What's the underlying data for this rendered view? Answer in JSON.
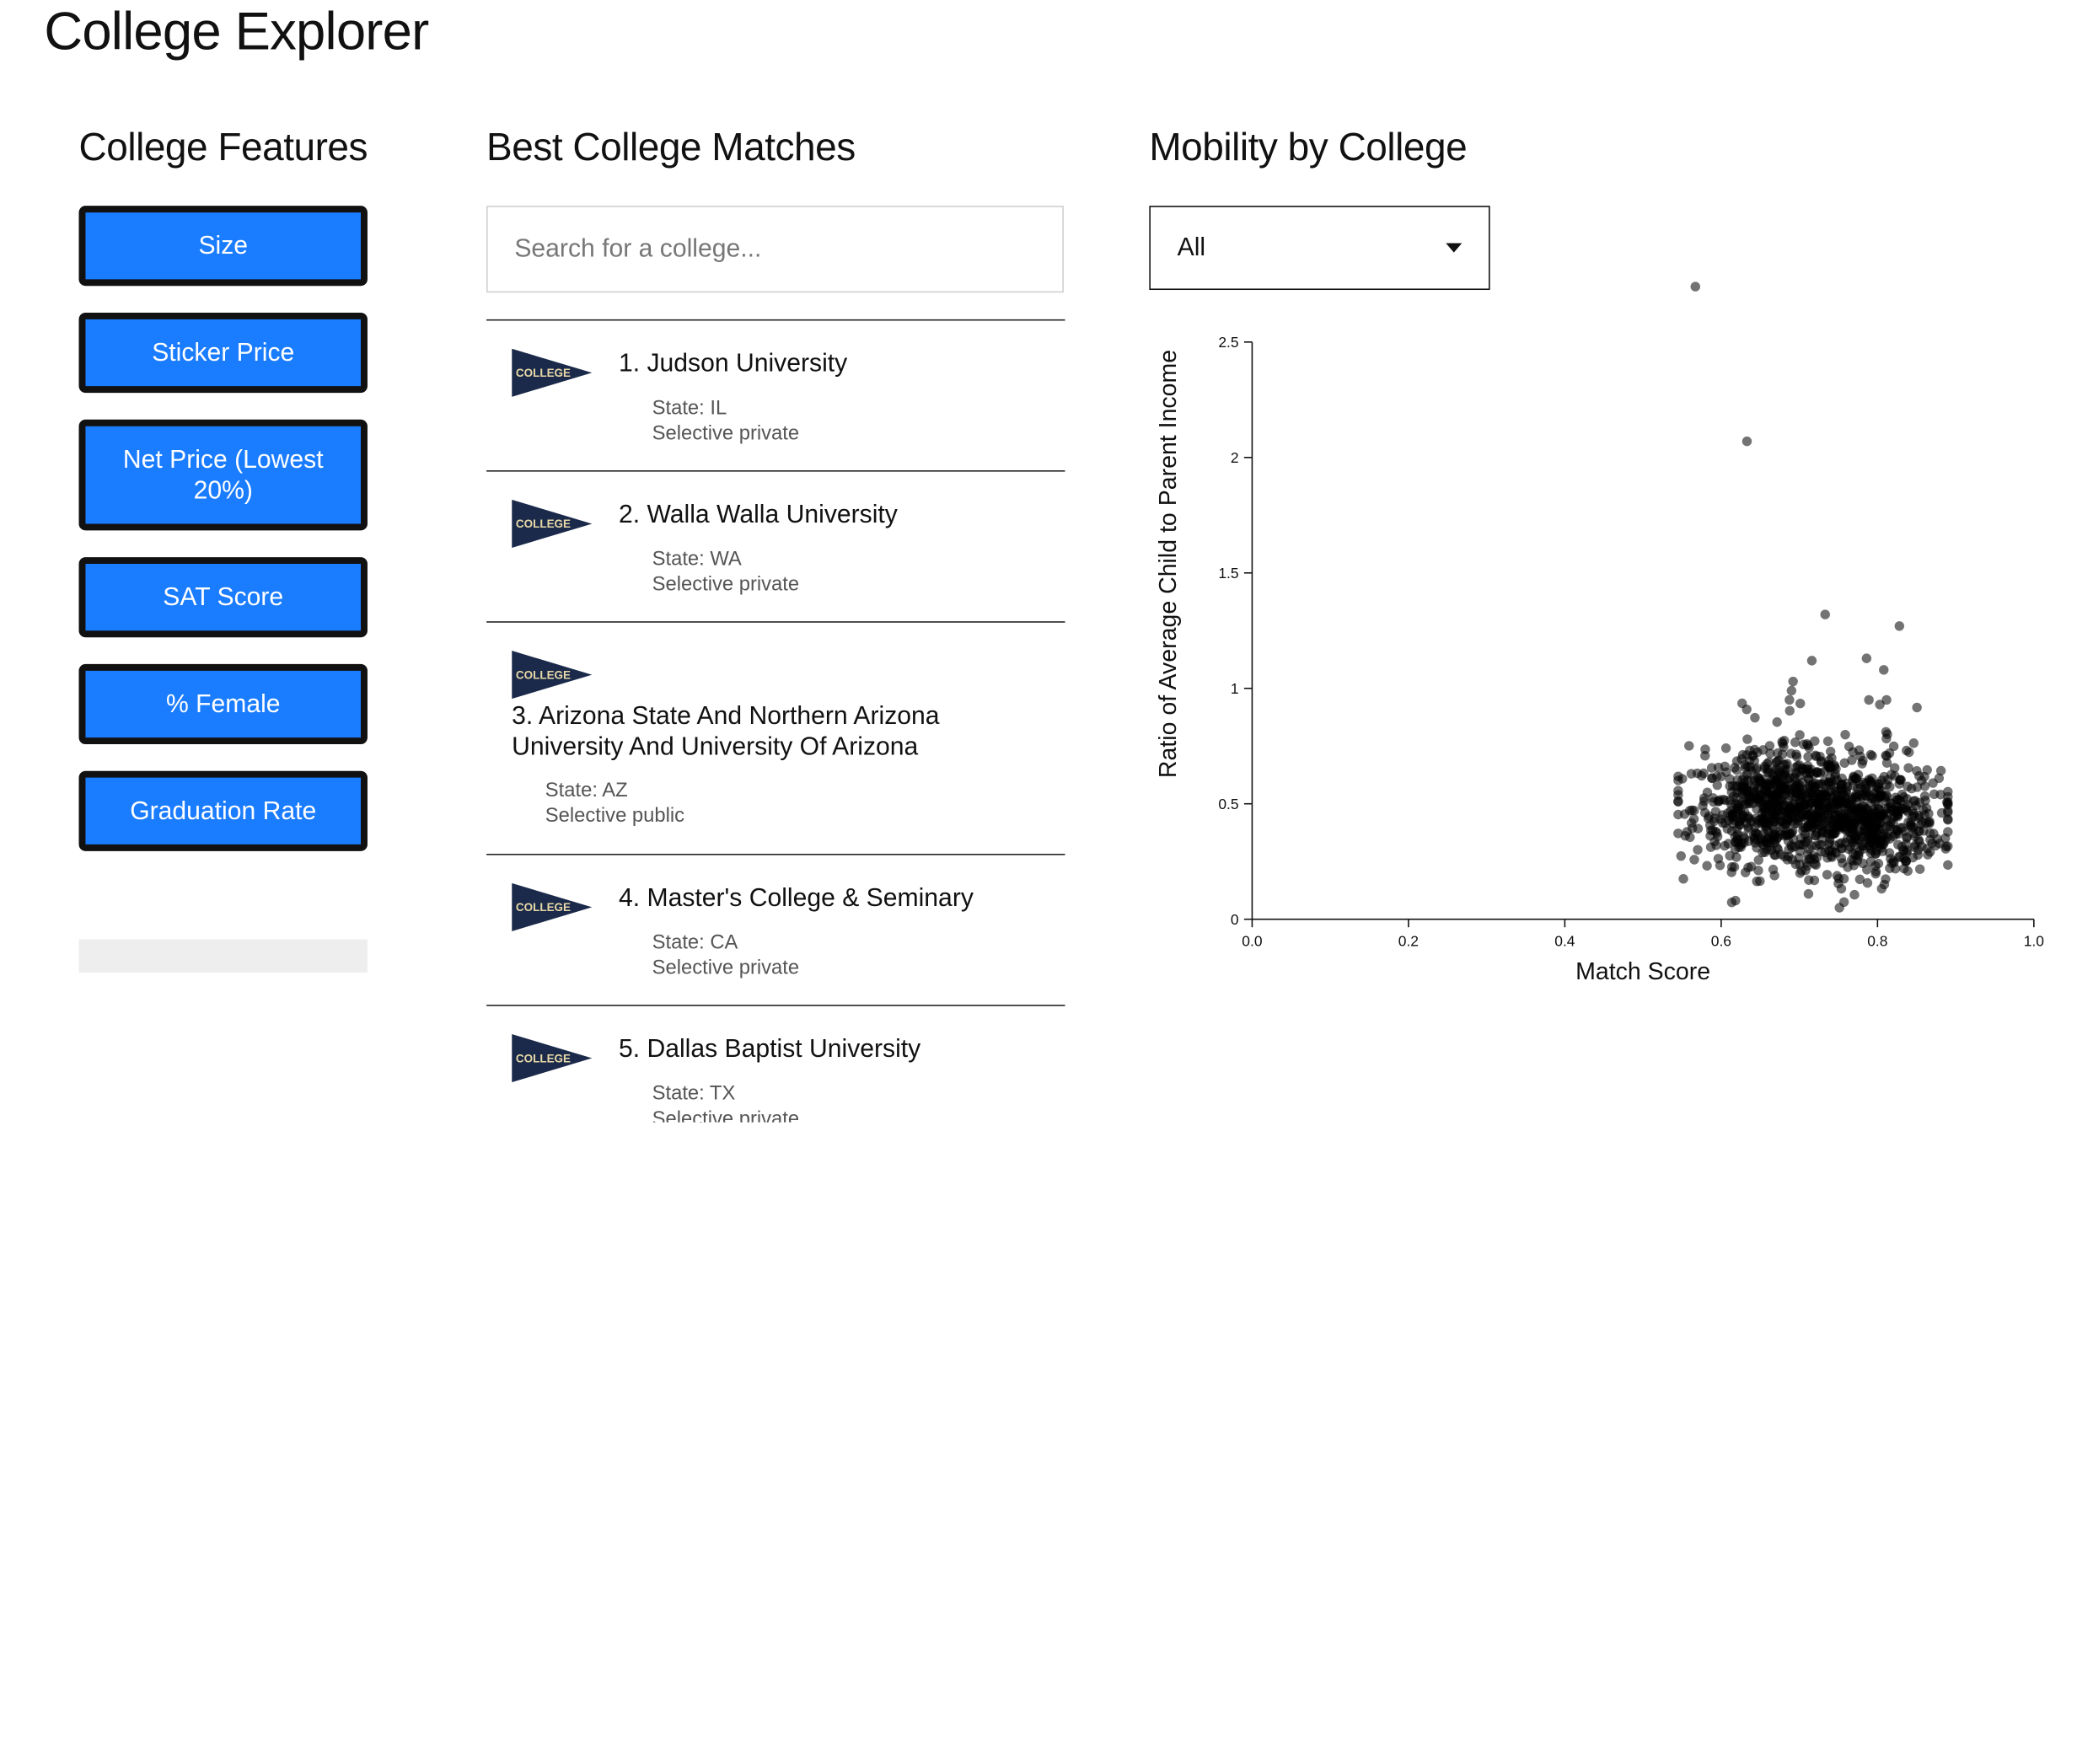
{
  "app": {
    "title": "College Explorer"
  },
  "features": {
    "title": "College Features",
    "buttons": [
      "Size",
      "Sticker Price",
      "Net Price (Lowest 20%)",
      "SAT Score",
      "% Female",
      "Graduation Rate"
    ]
  },
  "matches": {
    "title": "Best College Matches",
    "search_placeholder": "Search for a college...",
    "pennant_text": "COLLEGE",
    "results": [
      {
        "name": "1. Judson University",
        "state": "State: IL",
        "type": "Selective private"
      },
      {
        "name": "2. Walla Walla University",
        "state": "State: WA",
        "type": "Selective private"
      },
      {
        "name": "3. Arizona State And Northern Arizona University And University Of Arizona",
        "state": "State: AZ",
        "type": "Selective public"
      },
      {
        "name": "4. Master's College & Seminary",
        "state": "State: CA",
        "type": "Selective private"
      },
      {
        "name": "5. Dallas Baptist University",
        "state": "State: TX",
        "type": "Selective private"
      }
    ]
  },
  "mobility": {
    "title": "Mobility by College",
    "filter_selected": "All"
  },
  "colors": {
    "accent": "#1a7cff",
    "pennant": "#1b2a4a",
    "pennant_text": "#e8d9a8"
  },
  "icons": {
    "dropdown": "chevron-down-icon",
    "pennant": "college-pennant-icon"
  },
  "chart_data": {
    "type": "scatter",
    "xlabel": "Match Score",
    "ylabel": "Ratio of Average Child to Parent Income",
    "xlim": [
      0.0,
      1.0
    ],
    "ylim": [
      0,
      2.5
    ],
    "xticks": [
      0.0,
      0.2,
      0.4,
      0.6,
      0.8,
      1.0
    ],
    "xtick_labels": [
      "0.0",
      "0.2",
      "0.4",
      "0.6",
      "0.8",
      "1.0"
    ],
    "yticks": [
      0,
      0.5,
      1,
      1.5,
      2,
      2.5
    ],
    "ytick_labels": [
      "0",
      "0.5",
      "1",
      "1.5",
      "2",
      "2.5"
    ],
    "grid": false,
    "outliers": [
      {
        "x": 0.567,
        "y": 2.74
      },
      {
        "x": 0.633,
        "y": 2.07
      },
      {
        "x": 0.733,
        "y": 1.32
      },
      {
        "x": 0.828,
        "y": 1.27
      },
      {
        "x": 0.716,
        "y": 1.12
      },
      {
        "x": 0.786,
        "y": 1.13
      },
      {
        "x": 0.808,
        "y": 1.08
      },
      {
        "x": 0.692,
        "y": 1.03
      },
      {
        "x": 0.803,
        "y": 0.93
      },
      {
        "x": 0.69,
        "y": 0.99
      }
    ],
    "clusters": [
      {
        "x_center": 0.665,
        "y_center": 0.48,
        "x_spread": 0.05,
        "y_spread": 0.12,
        "count": 520
      },
      {
        "x_center": 0.78,
        "y_center": 0.42,
        "x_spread": 0.05,
        "y_spread": 0.11,
        "count": 560
      },
      {
        "x_center": 0.72,
        "y_center": 0.55,
        "x_spread": 0.08,
        "y_spread": 0.16,
        "count": 220
      }
    ],
    "x_range": [
      0.545,
      0.89
    ],
    "y_range": [
      0.05,
      0.95
    ]
  }
}
